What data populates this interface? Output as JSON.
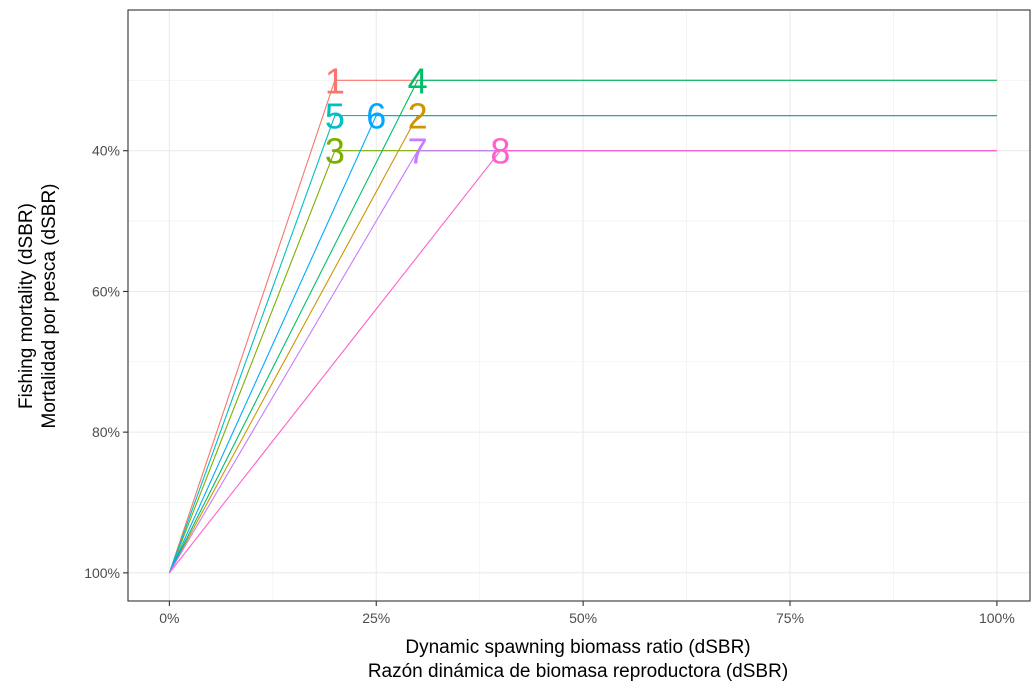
{
  "chart_data": {
    "type": "line",
    "xlabel": [
      "Dynamic spawning biomass ratio (dSBR)",
      "Razón dinámica de biomasa reproductora (dSBR)"
    ],
    "ylabel": [
      "Fishing mortality (dSBR)",
      "Mortalidad por pesca (dSBR)"
    ],
    "xlim": [
      -5,
      104
    ],
    "ylim": [
      20,
      104
    ],
    "y_reversed": true,
    "x_ticks": [
      {
        "value": 0,
        "label": "0%"
      },
      {
        "value": 25,
        "label": "25%"
      },
      {
        "value": 50,
        "label": "50%"
      },
      {
        "value": 75,
        "label": "75%"
      },
      {
        "value": 100,
        "label": "100%"
      }
    ],
    "y_ticks": [
      {
        "value": 40,
        "label": "40%"
      },
      {
        "value": 60,
        "label": "60%"
      },
      {
        "value": 80,
        "label": "80%"
      },
      {
        "value": 100,
        "label": "100%"
      }
    ],
    "grid": true,
    "legend": "none",
    "series": [
      {
        "name": "1",
        "color": "#F8766D",
        "x": [
          0,
          20,
          100
        ],
        "y": [
          100,
          30,
          30
        ]
      },
      {
        "name": "2",
        "color": "#CD9600",
        "x": [
          0,
          30,
          100
        ],
        "y": [
          100,
          35,
          35
        ]
      },
      {
        "name": "3",
        "color": "#7CAE00",
        "x": [
          0,
          20,
          100
        ],
        "y": [
          100,
          40,
          40
        ]
      },
      {
        "name": "4",
        "color": "#00BE67",
        "x": [
          0,
          30,
          100
        ],
        "y": [
          100,
          30,
          30
        ]
      },
      {
        "name": "5",
        "color": "#00BFC4",
        "x": [
          0,
          20,
          100
        ],
        "y": [
          100,
          35,
          35
        ]
      },
      {
        "name": "6",
        "color": "#00A9FF",
        "x": [
          0,
          25,
          100
        ],
        "y": [
          100,
          35,
          35
        ]
      },
      {
        "name": "7",
        "color": "#C77CFF",
        "x": [
          0,
          30,
          100
        ],
        "y": [
          100,
          40,
          40
        ]
      },
      {
        "name": "8",
        "color": "#FF61CC",
        "x": [
          0,
          40,
          100
        ],
        "y": [
          100,
          40,
          40
        ]
      }
    ]
  }
}
